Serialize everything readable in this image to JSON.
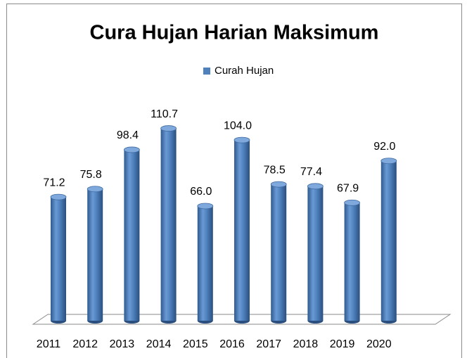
{
  "chart_data": {
    "type": "bar",
    "title": "Cura Hujan Harian Maksimum",
    "categories": [
      "2011",
      "2012",
      "2013",
      "2014",
      "2015",
      "2016",
      "2017",
      "2018",
      "2019",
      "2020"
    ],
    "series": [
      {
        "name": "Curah Hujan",
        "color": "#4f81bd",
        "values": [
          71.2,
          75.8,
          98.4,
          110.7,
          66.0,
          104.0,
          78.5,
          77.4,
          67.9,
          92.0
        ],
        "value_labels": [
          "71.2",
          "75.8",
          "98.4",
          "110.7",
          "66.0",
          "104.0",
          "78.5",
          "77.4",
          "67.9",
          "92.0"
        ]
      }
    ],
    "legend": "top"
  }
}
